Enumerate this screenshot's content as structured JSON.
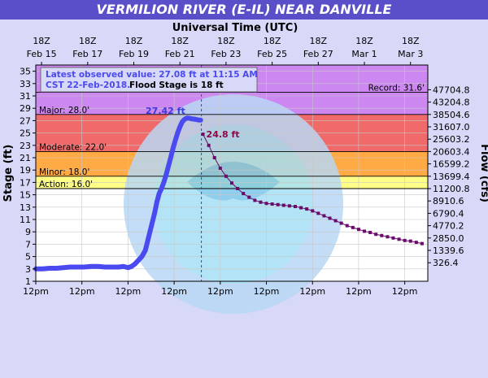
{
  "chart_data": {
    "type": "line",
    "title": "VERMILION RIVER (E-IL) NEAR DANVILLE",
    "top_axis_label": "Universal Time (UTC)",
    "top_ticks": [
      {
        "hour": "18Z",
        "date": "Feb 15"
      },
      {
        "hour": "18Z",
        "date": "Feb 17"
      },
      {
        "hour": "18Z",
        "date": "Feb 19"
      },
      {
        "hour": "18Z",
        "date": "Feb 21"
      },
      {
        "hour": "18Z",
        "date": "Feb 23"
      },
      {
        "hour": "18Z",
        "date": "Feb 25"
      },
      {
        "hour": "18Z",
        "date": "Feb 27"
      },
      {
        "hour": "18Z",
        "date": "Mar 1"
      },
      {
        "hour": "18Z",
        "date": "Mar 3"
      }
    ],
    "bottom_ticks": [
      "12pm",
      "12pm",
      "12pm",
      "12pm",
      "12pm",
      "12pm",
      "12pm",
      "12pm",
      "12pm"
    ],
    "ylabel": "Stage (ft)",
    "y2label": "Flow (cfs)",
    "ylim": [
      1,
      36
    ],
    "yticks": [
      1,
      3,
      5,
      7,
      9,
      11,
      13,
      15,
      17,
      19,
      21,
      23,
      25,
      27,
      29,
      31,
      33,
      35
    ],
    "flow_ticks": [
      {
        "stage": 4,
        "label": "326.4"
      },
      {
        "stage": 6,
        "label": "1339.6"
      },
      {
        "stage": 8,
        "label": "2850.0"
      },
      {
        "stage": 10,
        "label": "4770.2"
      },
      {
        "stage": 12,
        "label": "6790.4"
      },
      {
        "stage": 14,
        "label": "8910.6"
      },
      {
        "stage": 16,
        "label": "11200.8"
      },
      {
        "stage": 18,
        "label": "13699.4"
      },
      {
        "stage": 20,
        "label": "16599.2"
      },
      {
        "stage": 22,
        "label": "20603.4"
      },
      {
        "stage": 24,
        "label": "25603.2"
      },
      {
        "stage": 26,
        "label": "31607.0"
      },
      {
        "stage": 28,
        "label": "38504.6"
      },
      {
        "stage": 30,
        "label": "43204.8"
      },
      {
        "stage": 32,
        "label": "47704.8"
      }
    ],
    "bands": [
      {
        "name": "Major",
        "from": 28,
        "to": 36,
        "color": "#cc88f0"
      },
      {
        "name": "Moderate",
        "from": 22,
        "to": 28,
        "color": "#f06a6a"
      },
      {
        "name": "Minor",
        "from": 18,
        "to": 22,
        "color": "#ffaa44"
      },
      {
        "name": "Action",
        "from": 16,
        "to": 18,
        "color": "#ffff88"
      }
    ],
    "stage_labels": [
      {
        "text": "Major: 28.0'",
        "value": 28
      },
      {
        "text": "Moderate: 22.0'",
        "value": 22
      },
      {
        "text": "Minor: 18.0'",
        "value": 18
      },
      {
        "text": "Action: 16.0'",
        "value": 16
      }
    ],
    "record": {
      "text": "Record: 31.6'",
      "value": 31.6
    },
    "observed_peak_label": "27.42 ft",
    "forecast_label": "24.8 ft",
    "legend_line1": "Latest observed value: 27.08 ft at 11:15 AM",
    "legend_line2a": "CST 22-Feb-2018.",
    "legend_line2b": "Flood Stage is 18 ft",
    "now_day": 7.18,
    "observed_color": "#4a4af0",
    "forecast_color": "#6a0a6a",
    "series": [
      {
        "name": "Observed",
        "x": [
          0,
          0.3,
          0.6,
          0.9,
          1.2,
          1.5,
          1.8,
          2.1,
          2.4,
          2.7,
          3.0,
          3.3,
          3.6,
          3.8,
          4.0,
          4.15,
          4.3,
          4.45,
          4.6,
          4.75,
          4.85,
          4.95,
          5.05,
          5.15,
          5.25,
          5.35,
          5.45,
          5.55,
          5.65,
          5.75,
          5.85,
          5.95,
          6.05,
          6.15,
          6.25,
          6.35,
          6.45,
          6.55,
          6.65,
          6.75,
          6.85,
          6.95,
          7.05,
          7.15
        ],
        "y": [
          3.0,
          3.0,
          3.1,
          3.1,
          3.2,
          3.3,
          3.3,
          3.3,
          3.4,
          3.4,
          3.3,
          3.3,
          3.3,
          3.4,
          3.2,
          3.4,
          3.8,
          4.4,
          5.0,
          6.0,
          7.5,
          9.0,
          10.5,
          12.0,
          13.8,
          15.2,
          16.0,
          17.0,
          18.2,
          19.6,
          21.0,
          22.5,
          23.8,
          25.0,
          26.0,
          26.8,
          27.2,
          27.42,
          27.4,
          27.3,
          27.25,
          27.2,
          27.1,
          27.08
        ]
      },
      {
        "name": "Forecast",
        "x": [
          7.25,
          7.5,
          7.75,
          8.0,
          8.25,
          8.5,
          8.75,
          9.0,
          9.25,
          9.5,
          9.75,
          10.0,
          10.25,
          10.5,
          10.75,
          11.0,
          11.25,
          11.5,
          11.75,
          12.0,
          12.25,
          12.5,
          12.75,
          13.0,
          13.25,
          13.5,
          13.75,
          14.0,
          14.25,
          14.5,
          14.75,
          15.0,
          15.25,
          15.5,
          15.75,
          16.0,
          16.25,
          16.5,
          16.75
        ],
        "y": [
          24.8,
          23.0,
          21.0,
          19.3,
          18.0,
          16.9,
          16.0,
          15.2,
          14.6,
          14.1,
          13.8,
          13.6,
          13.5,
          13.4,
          13.3,
          13.2,
          13.1,
          12.9,
          12.7,
          12.4,
          12.0,
          11.6,
          11.2,
          10.8,
          10.4,
          10.0,
          9.7,
          9.4,
          9.1,
          8.9,
          8.6,
          8.4,
          8.2,
          8.0,
          7.8,
          7.6,
          7.5,
          7.3,
          7.1
        ]
      }
    ]
  }
}
